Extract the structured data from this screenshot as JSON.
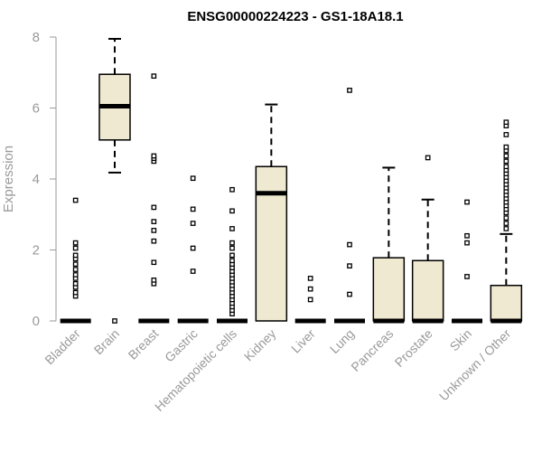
{
  "chart_data": {
    "type": "box",
    "title": "ENSG00000224223 - GS1-18A18.1",
    "xlabel": "",
    "ylabel": "Expression",
    "ylim": [
      0,
      8
    ],
    "yticks": [
      0,
      2,
      4,
      6,
      8
    ],
    "box_fill": "#efe9d1",
    "categories": [
      "Bladder",
      "Brain",
      "Breast",
      "Gastric",
      "Hematopoietic cells",
      "Kidney",
      "Liver",
      "Lung",
      "Pancreas",
      "Prostate",
      "Skin",
      "Unknown / Other"
    ],
    "boxes": [
      {
        "category": "Bladder",
        "min": 0,
        "q1": 0,
        "median": 0,
        "q3": 0,
        "max": 0,
        "outliers": [
          0.7,
          0.8,
          0.95,
          1.05,
          1.2,
          1.3,
          1.45,
          1.6,
          1.75,
          1.85,
          2.05,
          2.2,
          3.4
        ]
      },
      {
        "category": "Brain",
        "min": 4.18,
        "q1": 5.1,
        "median": 6.05,
        "q3": 6.95,
        "max": 7.95,
        "outliers": [
          0
        ]
      },
      {
        "category": "Breast",
        "min": 0,
        "q1": 0,
        "median": 0,
        "q3": 0,
        "max": 0,
        "outliers": [
          1.05,
          1.15,
          1.65,
          2.25,
          2.55,
          2.8,
          3.2,
          4.5,
          4.58,
          4.65,
          6.9
        ]
      },
      {
        "category": "Gastric",
        "min": 0,
        "q1": 0,
        "median": 0,
        "q3": 0,
        "max": 0,
        "outliers": [
          1.4,
          2.05,
          2.75,
          3.15,
          4.02
        ]
      },
      {
        "category": "Hematopoietic cells",
        "min": 0,
        "q1": 0,
        "median": 0,
        "q3": 0,
        "max": 0,
        "outliers": [
          0.2,
          0.3,
          0.4,
          0.5,
          0.6,
          0.7,
          0.8,
          0.9,
          1.0,
          1.1,
          1.2,
          1.3,
          1.4,
          1.5,
          1.6,
          1.7,
          1.85,
          2.05,
          2.2,
          2.6,
          3.1,
          3.7
        ]
      },
      {
        "category": "Kidney",
        "min": 0,
        "q1": 0,
        "median": 3.6,
        "q3": 4.35,
        "max": 6.1,
        "outliers": []
      },
      {
        "category": "Liver",
        "min": 0,
        "q1": 0,
        "median": 0,
        "q3": 0,
        "max": 0,
        "outliers": [
          0.6,
          0.9,
          1.2
        ]
      },
      {
        "category": "Lung",
        "min": 0,
        "q1": 0,
        "median": 0,
        "q3": 0,
        "max": 0,
        "outliers": [
          0.75,
          1.55,
          2.15,
          6.5
        ]
      },
      {
        "category": "Pancreas",
        "min": 0,
        "q1": 0,
        "median": 0,
        "q3": 1.78,
        "max": 4.32,
        "outliers": []
      },
      {
        "category": "Prostate",
        "min": 0,
        "q1": 0,
        "median": 0,
        "q3": 1.7,
        "max": 3.42,
        "outliers": [
          4.6
        ]
      },
      {
        "category": "Skin",
        "min": 0,
        "q1": 0,
        "median": 0,
        "q3": 0,
        "max": 0,
        "outliers": [
          1.25,
          2.2,
          2.4,
          3.35
        ]
      },
      {
        "category": "Unknown / Other",
        "min": 0,
        "q1": 0,
        "median": 0,
        "q3": 1.0,
        "max": 2.45,
        "outliers": [
          2.6,
          2.75,
          2.9,
          3.05,
          3.15,
          3.25,
          3.35,
          3.45,
          3.55,
          3.65,
          3.75,
          3.85,
          3.95,
          4.05,
          4.15,
          4.25,
          4.35,
          4.5,
          4.65,
          4.8,
          4.9,
          5.25,
          5.5,
          5.6
        ]
      }
    ]
  }
}
